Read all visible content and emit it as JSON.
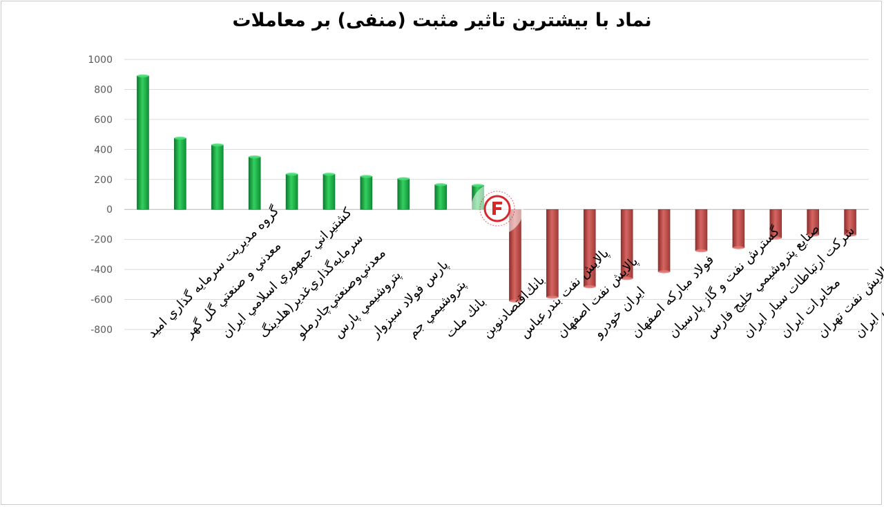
{
  "chart_data": {
    "type": "bar",
    "title": "نماد با بیشترین تاثیر مثبت (منفی) بر معاملات",
    "xlabel": "",
    "ylabel": "",
    "ylim": [
      -800,
      1000
    ],
    "yticks": [
      1000,
      800,
      600,
      400,
      200,
      0,
      -200,
      -400,
      -600,
      -800
    ],
    "grid": true,
    "legend": "none",
    "categories": [
      "گروه مديريت سرمايه گذاري اميد",
      "معدني و صنعتي گل گهر",
      "كشتيراني جمهوري اسلامي ايران",
      "سرمايه‌گذاري‌غدير(هلدينگ‌",
      "معدني‌وصنعتي‌چادرملو",
      "پتروشيمي پارس",
      "پارس فولاد سبزوار",
      "پتروشيمي جم",
      "بانك ملت",
      "بانك‌اقتصادنوين",
      "پالايش نفت بندرعباس",
      "پالايش نفت اصفهان",
      "ايران خودرو",
      "فولاد مباركه اصفهان",
      "گسترش نفت و گاز پارسيان",
      "صنايع پتروشيمي خليج فارس",
      "شركت ارتباطات سيار ايران",
      "مخابرات ايران",
      "پالايش نفت تهران",
      "ملي صنايع مس ايران"
    ],
    "values": [
      890,
      475,
      430,
      350,
      235,
      235,
      220,
      205,
      165,
      160,
      -610,
      -585,
      -515,
      -460,
      -415,
      -275,
      -255,
      -190,
      -170,
      -170
    ],
    "colors": {
      "positive": "#22b14c",
      "negative": "#c0504d",
      "grid": "#d9d9d9",
      "axis_text": "#595959"
    }
  }
}
